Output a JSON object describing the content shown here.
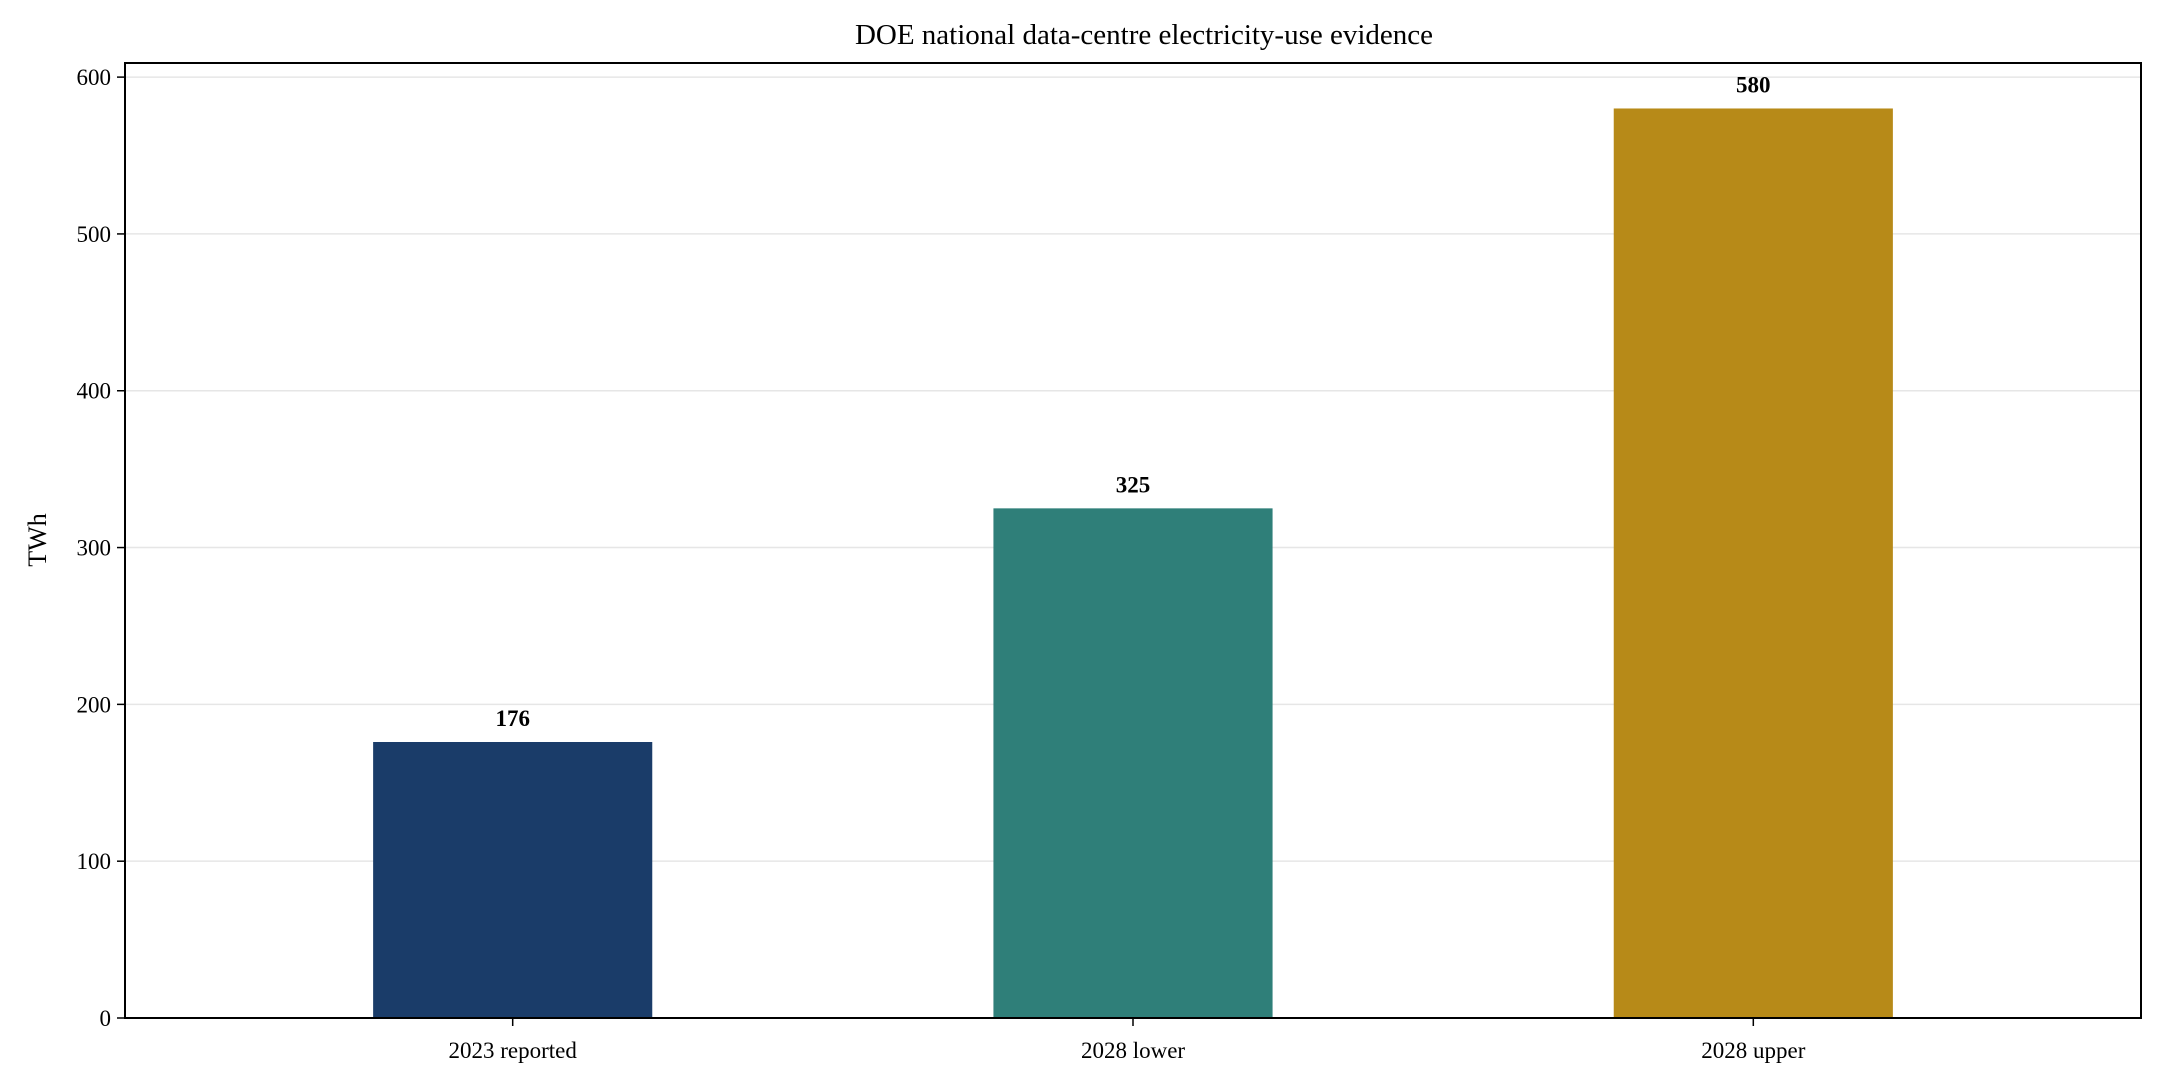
{
  "chart_data": {
    "type": "bar",
    "title": "DOE national data-centre electricity-use evidence",
    "xlabel": "",
    "ylabel": "TWh",
    "categories": [
      "2023 reported",
      "2028 lower",
      "2028 upper"
    ],
    "values": [
      176,
      325,
      580
    ],
    "data_labels": [
      "176",
      "325",
      "580"
    ],
    "colors": [
      "#1a3c69",
      "#2f7f79",
      "#b78a18"
    ],
    "ylim": [
      0,
      609
    ],
    "yticks": [
      0,
      100,
      200,
      300,
      400,
      500,
      600
    ],
    "grid": true,
    "grid_axis": "y",
    "legend": "none"
  }
}
